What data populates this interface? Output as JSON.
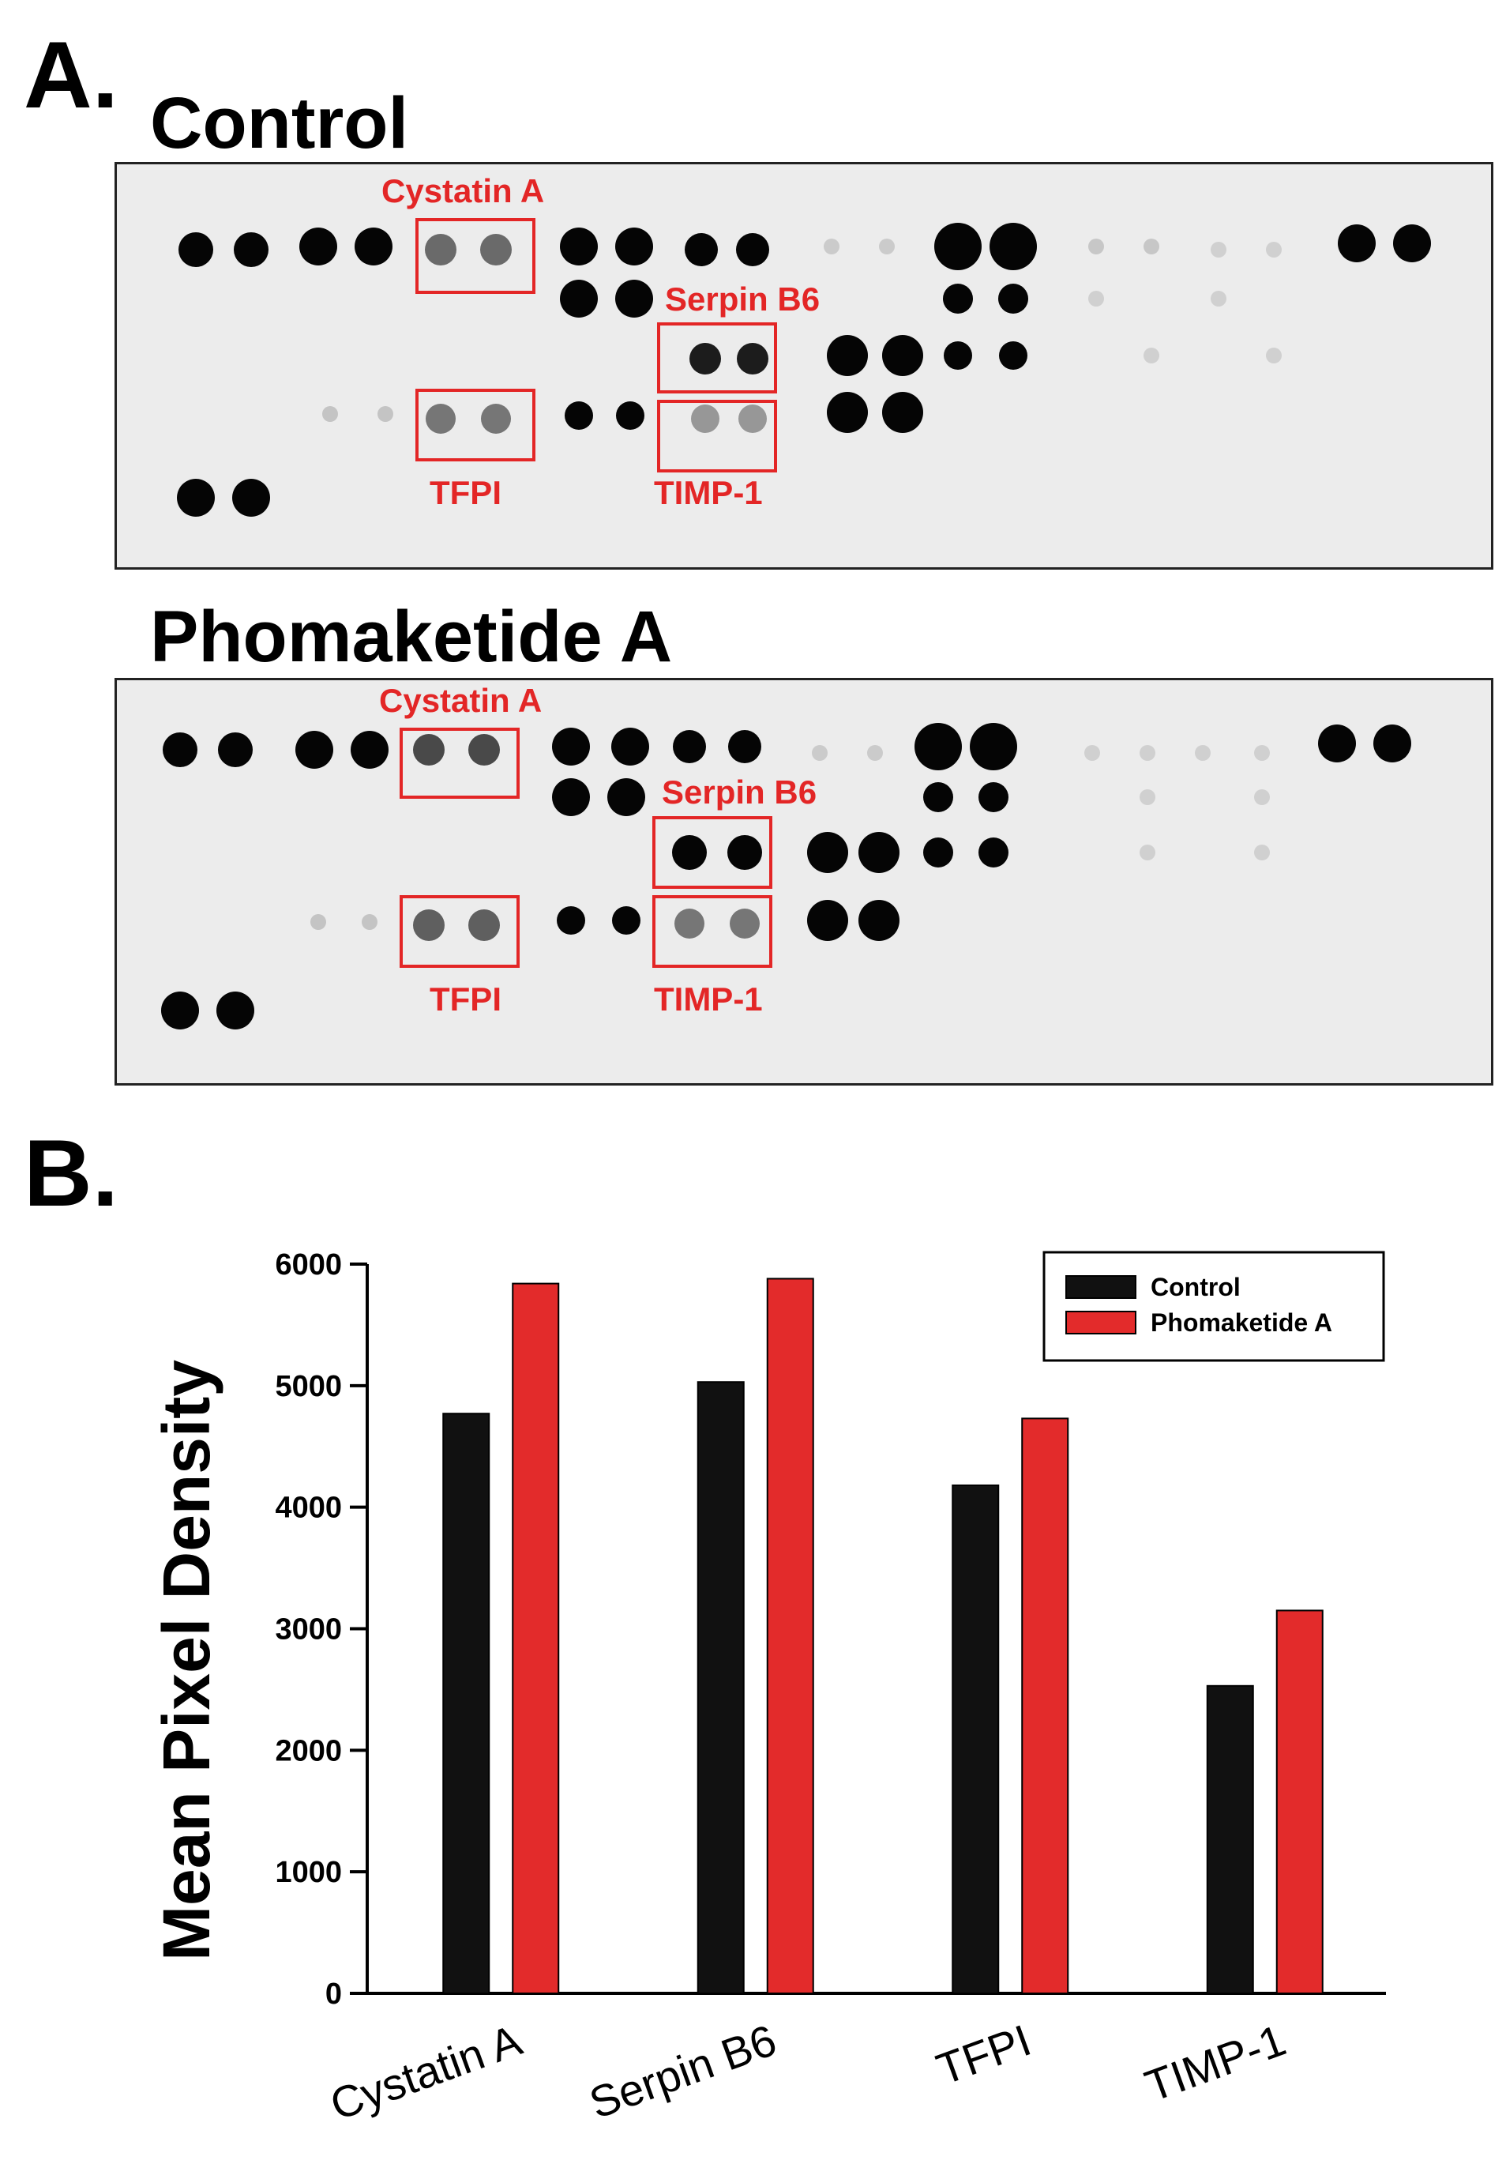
{
  "panels": {
    "a_label": "A.",
    "b_label": "B."
  },
  "blots": [
    {
      "title": "Control",
      "labels": {
        "cystatin": "Cystatin A",
        "serpin": "Serpin B6",
        "tfpi": "TFPI",
        "timp": "TIMP-1"
      }
    },
    {
      "title": "Phomaketide A",
      "labels": {
        "cystatin": "Cystatin A",
        "serpin": "Serpin B6",
        "tfpi": "TFPI",
        "timp": "TIMP-1"
      }
    }
  ],
  "colors": {
    "highlight": "#e32626",
    "control": "#111111",
    "treated": "#e32b2b"
  },
  "chart_data": {
    "type": "bar",
    "title": "",
    "xlabel": "",
    "ylabel": "Mean Pixel Density",
    "ylim": [
      0,
      6000
    ],
    "yticks": [
      0,
      1000,
      2000,
      3000,
      4000,
      5000,
      6000
    ],
    "categories": [
      "Cystatin A",
      "Serpin B6",
      "TFPI",
      "TIMP-1"
    ],
    "series": [
      {
        "name": "Control",
        "values": [
          4770,
          5030,
          4180,
          2530
        ]
      },
      {
        "name": "Phomaketide A",
        "values": [
          5840,
          5880,
          4730,
          3150
        ]
      }
    ],
    "legend": "top-right"
  }
}
